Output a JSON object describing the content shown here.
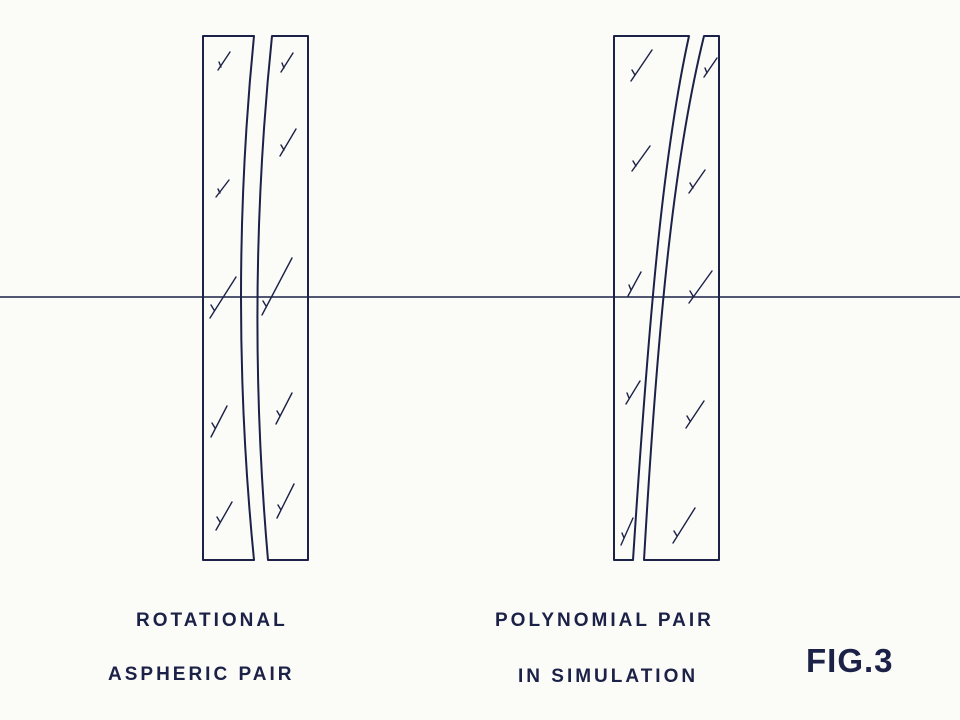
{
  "figure": {
    "label": "FIG.3",
    "ink_color": "#1c2147",
    "paper_color": "#fbfbf8"
  },
  "left_pair": {
    "caption_line1": "ROTATIONAL",
    "caption_line2": "ASPHERIC PAIR"
  },
  "right_pair": {
    "caption_line1": "POLYNOMIAL PAIR",
    "caption_line2": "IN SIMULATION"
  }
}
